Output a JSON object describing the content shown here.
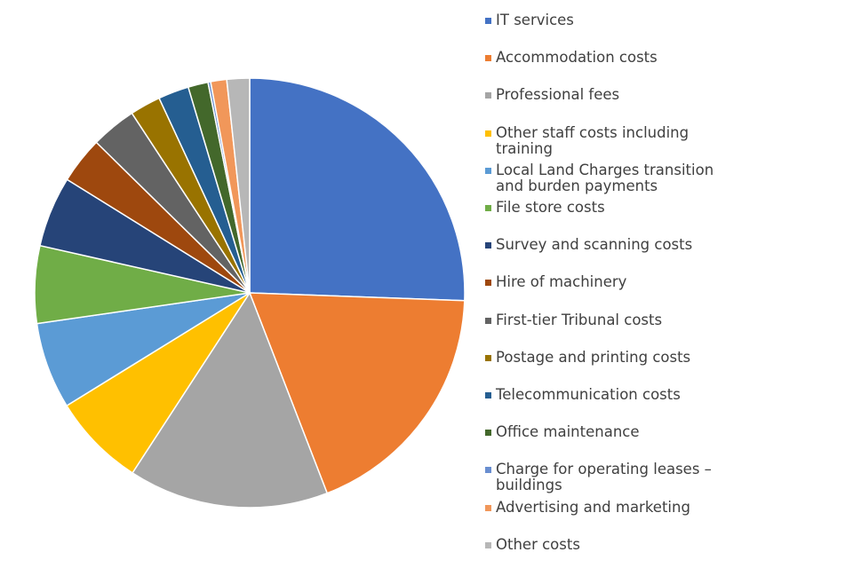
{
  "chart_data": {
    "type": "pie",
    "title": "",
    "slices": [
      {
        "label": "IT services",
        "value": 25.5,
        "color": "#4472C4"
      },
      {
        "label": "Accommodation costs",
        "value": 18.5,
        "color": "#ED7D31"
      },
      {
        "label": "Professional fees",
        "value": 15.0,
        "color": "#A5A5A5"
      },
      {
        "label": "Other staff costs including training",
        "value": 7.0,
        "color": "#FFC000"
      },
      {
        "label": "Local Land Charges transition and burden payments",
        "value": 6.5,
        "color": "#5B9BD5"
      },
      {
        "label": "File store costs",
        "value": 5.8,
        "color": "#70AD47"
      },
      {
        "label": "Survey and scanning costs",
        "value": 5.3,
        "color": "#264478"
      },
      {
        "label": "Hire of machinery",
        "value": 3.5,
        "color": "#9E480E"
      },
      {
        "label": "First-tier Tribunal costs",
        "value": 3.4,
        "color": "#636363"
      },
      {
        "label": "Postage and printing costs",
        "value": 2.3,
        "color": "#997300"
      },
      {
        "label": "Telecommunication costs",
        "value": 2.3,
        "color": "#255E91"
      },
      {
        "label": "Office maintenance",
        "value": 1.5,
        "color": "#43682B"
      },
      {
        "label": "Charge for operating leases – buildings",
        "value": 0.2,
        "color": "#698ED0"
      },
      {
        "label": "Advertising and marketing",
        "value": 1.2,
        "color": "#F1975A"
      },
      {
        "label": "Other costs",
        "value": 1.7,
        "color": "#B7B7B7"
      }
    ],
    "legend_position": "right"
  }
}
